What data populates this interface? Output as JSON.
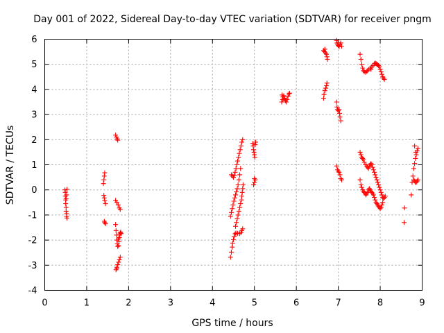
{
  "chart_data": {
    "type": "scatter",
    "title": "Day 001 of 2022, Sidereal Day-to-day VTEC variation (SDTVAR) for receiver pngm",
    "xlabel": "GPS time / hours",
    "ylabel": "SDTVAR / TECUs",
    "xlim": [
      0,
      9
    ],
    "ylim": [
      -4,
      6
    ],
    "xticks": [
      "0",
      "1",
      "2",
      "3",
      "4",
      "5",
      "6",
      "7",
      "8",
      "9"
    ],
    "yticks": [
      "-4",
      "-3",
      "-2",
      "-1",
      "0",
      "1",
      "2",
      "3",
      "4",
      "5",
      "6"
    ],
    "grid": true,
    "marker": "+",
    "color": "#ff0000",
    "series": [
      {
        "name": "SDTVAR",
        "points": [
          [
            0.48,
            0.0
          ],
          [
            0.49,
            -0.1
          ],
          [
            0.49,
            -0.25
          ],
          [
            0.5,
            -0.4
          ],
          [
            0.5,
            -0.55
          ],
          [
            0.51,
            -0.7
          ],
          [
            0.51,
            -0.85
          ],
          [
            0.52,
            -0.95
          ],
          [
            0.52,
            -1.05
          ],
          [
            0.53,
            -1.12
          ],
          [
            0.53,
            0.02
          ],
          [
            0.52,
            -0.2
          ],
          [
            0.51,
            -0.35
          ],
          [
            1.4,
            0.25
          ],
          [
            1.41,
            0.4
          ],
          [
            1.42,
            0.55
          ],
          [
            1.43,
            0.68
          ],
          [
            1.41,
            -0.22
          ],
          [
            1.42,
            -0.32
          ],
          [
            1.43,
            -0.42
          ],
          [
            1.45,
            -0.55
          ],
          [
            1.42,
            -1.25
          ],
          [
            1.43,
            -1.3
          ],
          [
            1.45,
            -1.35
          ],
          [
            1.69,
            2.18
          ],
          [
            1.71,
            2.1
          ],
          [
            1.73,
            2.03
          ],
          [
            1.74,
            1.98
          ],
          [
            1.69,
            -0.42
          ],
          [
            1.72,
            -0.5
          ],
          [
            1.75,
            -0.6
          ],
          [
            1.78,
            -0.72
          ],
          [
            1.8,
            -0.78
          ],
          [
            1.69,
            -1.38
          ],
          [
            1.7,
            -1.62
          ],
          [
            1.71,
            -1.8
          ],
          [
            1.72,
            -2.0
          ],
          [
            1.73,
            -2.15
          ],
          [
            1.74,
            -2.25
          ],
          [
            1.76,
            -2.22
          ],
          [
            1.77,
            -2.05
          ],
          [
            1.78,
            -1.9
          ],
          [
            1.79,
            -1.78
          ],
          [
            1.8,
            -1.72
          ],
          [
            1.81,
            -1.68
          ],
          [
            1.76,
            -1.95
          ],
          [
            1.82,
            -1.74
          ],
          [
            1.7,
            -3.18
          ],
          [
            1.72,
            -3.08
          ],
          [
            1.74,
            -2.98
          ],
          [
            1.76,
            -2.88
          ],
          [
            1.78,
            -2.78
          ],
          [
            1.8,
            -2.68
          ],
          [
            1.72,
            -3.12
          ],
          [
            4.43,
            -2.68
          ],
          [
            4.45,
            -2.48
          ],
          [
            4.47,
            -2.28
          ],
          [
            4.48,
            -2.12
          ],
          [
            4.5,
            -1.98
          ],
          [
            4.52,
            -1.85
          ],
          [
            4.54,
            -1.75
          ],
          [
            4.56,
            -1.72
          ],
          [
            4.6,
            -1.73
          ],
          [
            4.65,
            -1.74
          ],
          [
            4.68,
            -1.7
          ],
          [
            4.7,
            -1.62
          ],
          [
            4.72,
            -1.55
          ],
          [
            4.43,
            -1.05
          ],
          [
            4.45,
            -0.9
          ],
          [
            4.47,
            -0.75
          ],
          [
            4.49,
            -0.6
          ],
          [
            4.51,
            -0.45
          ],
          [
            4.53,
            -0.32
          ],
          [
            4.55,
            -0.2
          ],
          [
            4.57,
            -0.08
          ],
          [
            4.59,
            0.05
          ],
          [
            4.61,
            0.2
          ],
          [
            4.63,
            0.4
          ],
          [
            4.65,
            0.6
          ],
          [
            4.67,
            0.85
          ],
          [
            4.55,
            -1.45
          ],
          [
            4.57,
            -1.3
          ],
          [
            4.59,
            -1.15
          ],
          [
            4.61,
            -1.0
          ],
          [
            4.63,
            -0.85
          ],
          [
            4.65,
            -0.7
          ],
          [
            4.67,
            -0.55
          ],
          [
            4.69,
            -0.4
          ],
          [
            4.7,
            -0.25
          ],
          [
            4.71,
            -0.1
          ],
          [
            4.72,
            0.05
          ],
          [
            4.73,
            0.2
          ],
          [
            4.45,
            0.6
          ],
          [
            4.48,
            0.55
          ],
          [
            4.5,
            0.5
          ],
          [
            4.52,
            0.58
          ],
          [
            4.54,
            0.7
          ],
          [
            4.56,
            0.85
          ],
          [
            4.58,
            1.0
          ],
          [
            4.6,
            1.15
          ],
          [
            4.62,
            1.3
          ],
          [
            4.64,
            1.45
          ],
          [
            4.66,
            1.6
          ],
          [
            4.68,
            1.75
          ],
          [
            4.7,
            1.9
          ],
          [
            4.72,
            2.0
          ],
          [
            4.96,
            1.85
          ],
          [
            4.97,
            1.75
          ],
          [
            4.98,
            1.6
          ],
          [
            4.99,
            1.5
          ],
          [
            5.0,
            1.4
          ],
          [
            5.01,
            1.3
          ],
          [
            5.02,
            1.8
          ],
          [
            5.03,
            1.9
          ],
          [
            4.98,
            0.2
          ],
          [
            5.0,
            0.3
          ],
          [
            5.02,
            0.4
          ],
          [
            5.0,
            0.45
          ],
          [
            5.65,
            3.5
          ],
          [
            5.67,
            3.6
          ],
          [
            5.68,
            3.7
          ],
          [
            5.7,
            3.75
          ],
          [
            5.72,
            3.65
          ],
          [
            5.74,
            3.55
          ],
          [
            5.76,
            3.5
          ],
          [
            5.78,
            3.6
          ],
          [
            5.8,
            3.72
          ],
          [
            5.82,
            3.82
          ],
          [
            5.84,
            3.85
          ],
          [
            5.7,
            3.62
          ],
          [
            5.66,
            3.78
          ],
          [
            6.65,
            5.55
          ],
          [
            6.67,
            5.5
          ],
          [
            6.7,
            5.45
          ],
          [
            6.72,
            5.4
          ],
          [
            6.73,
            5.3
          ],
          [
            6.74,
            5.2
          ],
          [
            6.68,
            5.6
          ],
          [
            6.65,
            3.65
          ],
          [
            6.66,
            3.8
          ],
          [
            6.68,
            3.95
          ],
          [
            6.7,
            4.05
          ],
          [
            6.72,
            4.15
          ],
          [
            6.73,
            4.25
          ],
          [
            6.96,
            5.95
          ],
          [
            6.97,
            5.85
          ],
          [
            6.98,
            5.8
          ],
          [
            7.0,
            5.75
          ],
          [
            7.02,
            5.7
          ],
          [
            7.04,
            5.8
          ],
          [
            7.06,
            5.85
          ],
          [
            7.08,
            5.72
          ],
          [
            6.96,
            3.5
          ],
          [
            6.97,
            3.3
          ],
          [
            6.98,
            3.2
          ],
          [
            7.0,
            3.15
          ],
          [
            7.02,
            3.2
          ],
          [
            7.03,
            3.05
          ],
          [
            7.04,
            2.9
          ],
          [
            7.06,
            2.75
          ],
          [
            6.96,
            0.95
          ],
          [
            6.98,
            0.8
          ],
          [
            7.0,
            0.75
          ],
          [
            7.02,
            0.7
          ],
          [
            7.04,
            0.6
          ],
          [
            7.06,
            0.45
          ],
          [
            7.08,
            0.4
          ],
          [
            7.52,
            5.4
          ],
          [
            7.54,
            5.2
          ],
          [
            7.56,
            5.0
          ],
          [
            7.58,
            4.85
          ],
          [
            7.6,
            4.75
          ],
          [
            7.62,
            4.7
          ],
          [
            7.65,
            4.68
          ],
          [
            7.68,
            4.72
          ],
          [
            7.7,
            4.75
          ],
          [
            7.73,
            4.8
          ],
          [
            7.76,
            4.85
          ],
          [
            7.78,
            4.8
          ],
          [
            7.8,
            4.9
          ],
          [
            7.83,
            4.95
          ],
          [
            7.86,
            5.02
          ],
          [
            7.88,
            5.05
          ],
          [
            7.9,
            5.03
          ],
          [
            7.92,
            5.0
          ],
          [
            7.94,
            4.98
          ],
          [
            7.96,
            4.95
          ],
          [
            7.98,
            4.9
          ],
          [
            8.0,
            4.8
          ],
          [
            8.02,
            4.7
          ],
          [
            8.04,
            4.6
          ],
          [
            8.06,
            4.5
          ],
          [
            8.08,
            4.45
          ],
          [
            8.1,
            4.4
          ],
          [
            7.52,
            1.5
          ],
          [
            7.54,
            1.4
          ],
          [
            7.56,
            1.3
          ],
          [
            7.58,
            1.25
          ],
          [
            7.6,
            1.2
          ],
          [
            7.62,
            1.1
          ],
          [
            7.65,
            1.0
          ],
          [
            7.68,
            0.95
          ],
          [
            7.7,
            0.9
          ],
          [
            7.72,
            0.85
          ],
          [
            7.74,
            0.95
          ],
          [
            7.76,
            1.0
          ],
          [
            7.78,
            1.05
          ],
          [
            7.8,
            1.0
          ],
          [
            7.82,
            0.9
          ],
          [
            7.84,
            0.8
          ],
          [
            7.86,
            0.7
          ],
          [
            7.88,
            0.6
          ],
          [
            7.9,
            0.5
          ],
          [
            7.92,
            0.4
          ],
          [
            7.94,
            0.3
          ],
          [
            7.96,
            0.2
          ],
          [
            7.98,
            0.1
          ],
          [
            8.0,
            0.0
          ],
          [
            8.02,
            -0.1
          ],
          [
            8.04,
            -0.2
          ],
          [
            8.06,
            -0.3
          ],
          [
            8.08,
            -0.35
          ],
          [
            8.1,
            -0.3
          ],
          [
            8.12,
            -0.25
          ],
          [
            7.52,
            0.4
          ],
          [
            7.54,
            0.2
          ],
          [
            7.56,
            0.1
          ],
          [
            7.58,
            0.0
          ],
          [
            7.6,
            -0.05
          ],
          [
            7.62,
            -0.1
          ],
          [
            7.64,
            -0.15
          ],
          [
            7.66,
            -0.2
          ],
          [
            7.68,
            -0.15
          ],
          [
            7.7,
            -0.1
          ],
          [
            7.72,
            0.0
          ],
          [
            7.74,
            0.05
          ],
          [
            7.76,
            0.0
          ],
          [
            7.78,
            -0.05
          ],
          [
            7.8,
            -0.1
          ],
          [
            7.82,
            -0.15
          ],
          [
            7.84,
            -0.2
          ],
          [
            7.86,
            -0.3
          ],
          [
            7.88,
            -0.4
          ],
          [
            7.9,
            -0.5
          ],
          [
            7.92,
            -0.55
          ],
          [
            7.94,
            -0.6
          ],
          [
            7.96,
            -0.65
          ],
          [
            7.98,
            -0.7
          ],
          [
            8.0,
            -0.75
          ],
          [
            8.02,
            -0.7
          ],
          [
            8.04,
            -0.6
          ],
          [
            8.06,
            -0.5
          ],
          [
            8.58,
            -0.72
          ],
          [
            8.57,
            -1.3
          ],
          [
            8.74,
            -0.2
          ],
          [
            8.76,
            0.3
          ],
          [
            8.78,
            0.55
          ],
          [
            8.8,
            0.85
          ],
          [
            8.82,
            1.05
          ],
          [
            8.84,
            1.25
          ],
          [
            8.86,
            1.4
          ],
          [
            8.88,
            1.55
          ],
          [
            8.9,
            1.65
          ],
          [
            8.82,
            1.75
          ],
          [
            8.85,
            1.5
          ],
          [
            8.8,
            0.4
          ],
          [
            8.82,
            0.35
          ],
          [
            8.84,
            0.3
          ],
          [
            8.86,
            0.3
          ],
          [
            8.88,
            0.35
          ],
          [
            8.9,
            0.4
          ]
        ]
      }
    ]
  }
}
